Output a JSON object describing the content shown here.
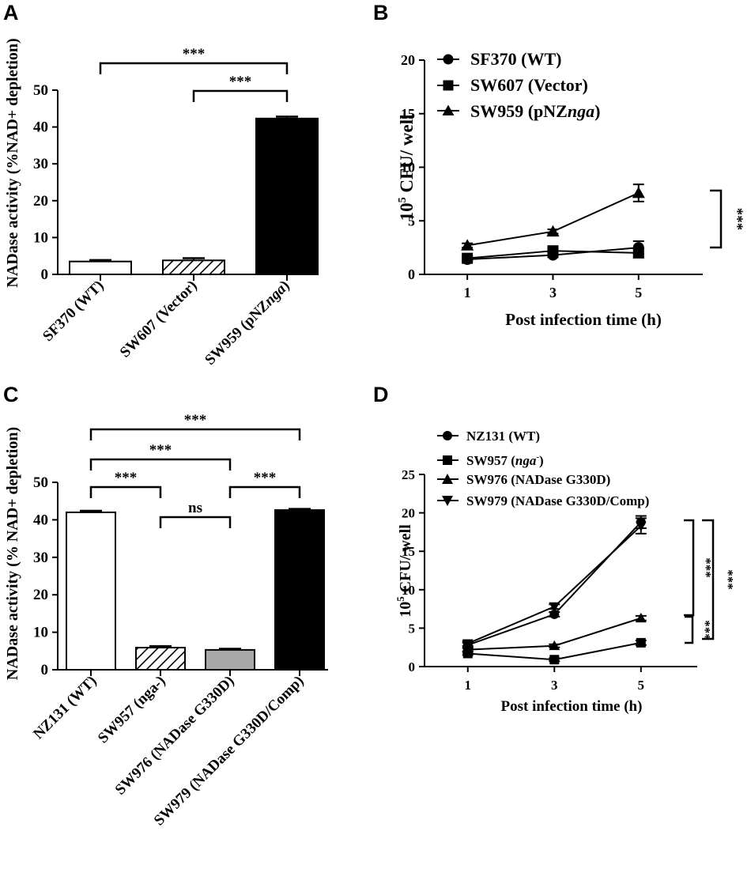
{
  "chart_data": [
    {
      "type": "bar",
      "panel": "A",
      "ylabel": "NADase activity (%NAD+ depletion)",
      "ylim": [
        0,
        50
      ],
      "yticks": [
        0,
        10,
        20,
        30,
        40,
        50
      ],
      "categories": [
        "SF370 (WT)",
        "SW607 (Vector)",
        "SW959 (pNZnga)"
      ],
      "values": [
        3.5,
        3.8,
        42.3
      ],
      "errors": [
        0.4,
        0.6,
        0.5
      ],
      "fills": [
        "white",
        "hatch",
        "black"
      ],
      "significance": [
        {
          "from": 0,
          "to": 2,
          "label": "***"
        },
        {
          "from": 1,
          "to": 2,
          "label": "***"
        }
      ]
    },
    {
      "type": "line",
      "panel": "B",
      "xlabel": "Post infection time (h)",
      "ylabel_base": "10",
      "ylabel_sup": "5",
      "ylabel_rest": " CFU/ well",
      "x": [
        1,
        3,
        5
      ],
      "xlim": [
        0,
        6.5
      ],
      "ylim": [
        0,
        20
      ],
      "yticks": [
        0,
        5,
        10,
        15,
        20
      ],
      "series": [
        {
          "name": "SF370 (WT)",
          "marker": "circle",
          "values": [
            1.4,
            1.8,
            2.5
          ],
          "errors": [
            0.2,
            0.2,
            0.6
          ]
        },
        {
          "name": "SW607 (Vector)",
          "marker": "square",
          "values": [
            1.5,
            2.2,
            2.0
          ],
          "errors": [
            0.2,
            0.2,
            0.4
          ]
        },
        {
          "name": "SW959 (pNZnga)",
          "marker": "triangle",
          "values": [
            2.7,
            4.0,
            7.6
          ],
          "errors": [
            0.2,
            0.2,
            0.8
          ]
        }
      ],
      "significance": [
        {
          "label": "***"
        }
      ]
    },
    {
      "type": "bar",
      "panel": "C",
      "ylabel": "NADase activity (% NAD+ depletion)",
      "ylim": [
        0,
        50
      ],
      "yticks": [
        0,
        10,
        20,
        30,
        40,
        50
      ],
      "categories": [
        "NZ131 (WT)",
        "SW957 (nga-)",
        "SW976 (NADase G330D)",
        "SW979 (NADase G330D/Comp)"
      ],
      "values": [
        42.0,
        5.9,
        5.3,
        42.6
      ],
      "errors": [
        0.4,
        0.4,
        0.3,
        0.3
      ],
      "fills": [
        "white",
        "hatch",
        "gray",
        "black"
      ],
      "significance": [
        {
          "from": 0,
          "to": 3,
          "label": "***"
        },
        {
          "from": 0,
          "to": 2,
          "label": "***"
        },
        {
          "from": 0,
          "to": 1,
          "label": "***"
        },
        {
          "from": 1,
          "to": 2,
          "label": "ns"
        },
        {
          "from": 2,
          "to": 3,
          "label": "***"
        }
      ]
    },
    {
      "type": "line",
      "panel": "D",
      "xlabel": "Post infection time (h)",
      "ylabel_base": "10",
      "ylabel_sup": "5",
      "ylabel_rest": " CFU/ well",
      "x": [
        1,
        3,
        5
      ],
      "xlim": [
        0,
        6.3
      ],
      "ylim": [
        0,
        25
      ],
      "yticks": [
        0,
        5,
        10,
        15,
        20,
        25
      ],
      "series": [
        {
          "name": "NZ131 (WT)",
          "marker": "circle",
          "values": [
            2.8,
            6.8,
            18.8
          ],
          "errors": [
            0.3,
            0.3,
            0.8
          ]
        },
        {
          "name": "SW957 (nga-)",
          "marker": "square",
          "values": [
            1.7,
            0.9,
            3.1
          ],
          "errors": [
            0.2,
            0.2,
            0.3
          ]
        },
        {
          "name": "SW976 (NADase G330D)",
          "marker": "triangle",
          "values": [
            2.2,
            2.7,
            6.3
          ],
          "errors": [
            0.2,
            0.2,
            0.3
          ]
        },
        {
          "name": "SW979 (NADase G330D/Comp)",
          "marker": "triangle-down",
          "values": [
            3.0,
            7.8,
            18.3
          ],
          "errors": [
            0.3,
            0.3,
            1.0
          ]
        }
      ],
      "significance": [
        {
          "label": "***"
        },
        {
          "label": "***"
        },
        {
          "label": "***"
        }
      ]
    }
  ],
  "panels": {
    "a": {
      "letter": "A"
    },
    "b": {
      "letter": "B"
    },
    "c": {
      "letter": "C"
    },
    "d": {
      "letter": "D"
    }
  },
  "legend_b": {
    "item0_main": "SF370 (WT)",
    "item1_main": "SW607 (Vector)",
    "item2_main": "SW959 (pNZ",
    "item2_it": "nga",
    "item2_end": ")"
  },
  "legend_d": {
    "item0_main": "NZ131 (WT)",
    "item1_main": "SW957 (",
    "item1_it": "nga",
    "item1_sup": "-",
    "item1_end": ")",
    "item2_main": "SW976 (NADase G330D)",
    "item3_main": "SW979 (NADase G330D/Comp)"
  },
  "bar_a_labels": {
    "l0": "SF370 (WT)",
    "l1": "SW607 (Vector)",
    "l2_main": "SW959 (pNZ",
    "l2_it": "nga",
    "l2_end": ")"
  },
  "bar_c_labels": {
    "l0": "NZ131 (WT)",
    "l1": "SW957 (nga-)",
    "l2": "SW976 (NADase G330D)",
    "l3": "SW979 (NADase G330D/Comp)"
  }
}
